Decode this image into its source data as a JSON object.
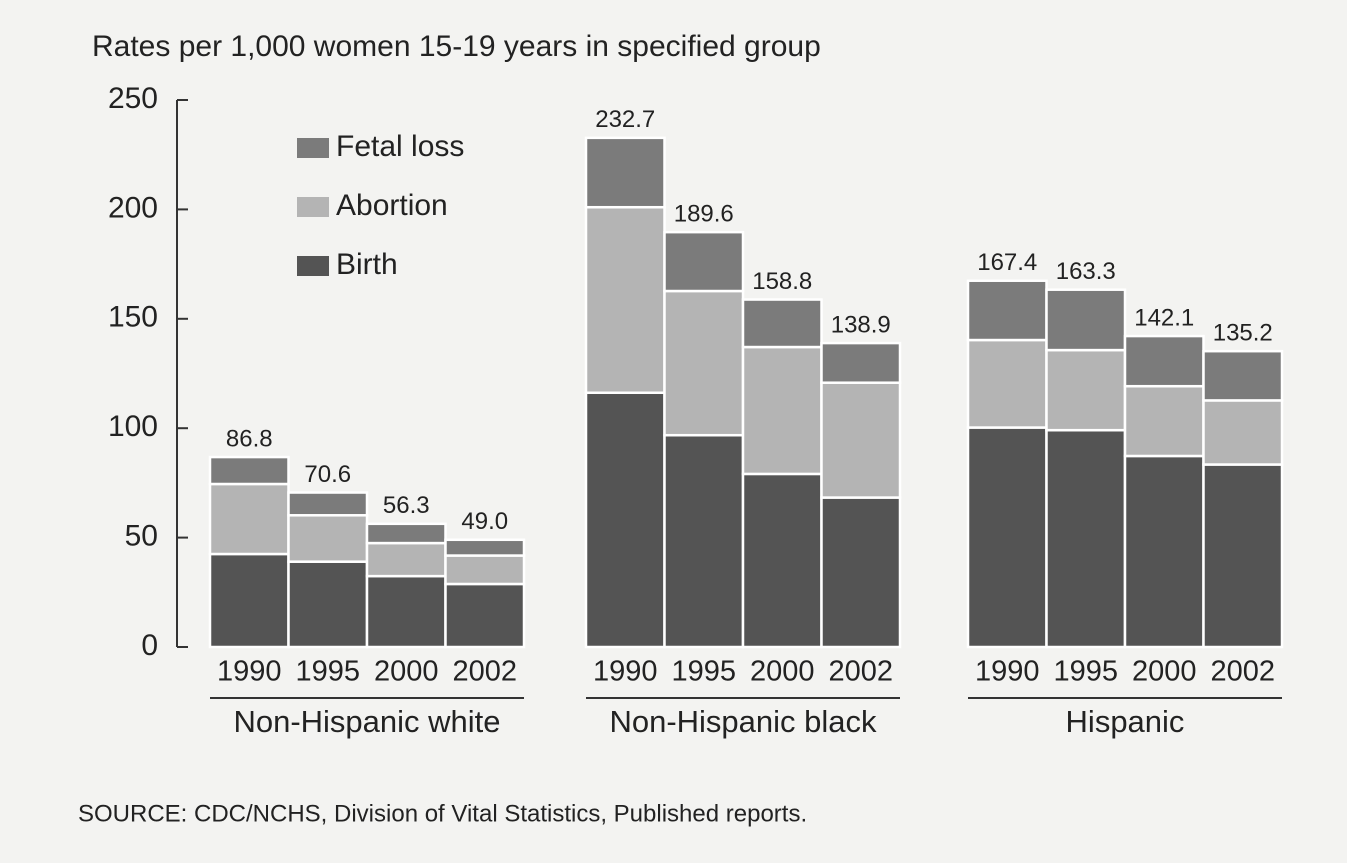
{
  "chart_data": {
    "type": "stacked_bar",
    "title": "Rates per 1,000 women 15-19 years in specified group",
    "groups": [
      {
        "label": "Non-Hispanic white",
        "categories": [
          "1990",
          "1995",
          "2000",
          "2002"
        ]
      },
      {
        "label": "Non-Hispanic black",
        "categories": [
          "1990",
          "1995",
          "2000",
          "2002"
        ]
      },
      {
        "label": "Hispanic",
        "categories": [
          "1990",
          "1995",
          "2000",
          "2002"
        ]
      }
    ],
    "series": [
      {
        "name": "Birth",
        "color": "#545454",
        "values": [
          42.5,
          39.0,
          32.4,
          28.8,
          116.2,
          96.8,
          79.1,
          68.3,
          100.3,
          99.1,
          87.3,
          83.4
        ]
      },
      {
        "name": "Abortion",
        "color": "#b4b4b4",
        "values": [
          32.0,
          21.2,
          15.1,
          13.0,
          84.8,
          65.9,
          58.0,
          52.5,
          40.0,
          36.6,
          31.9,
          29.3
        ]
      },
      {
        "name": "Fetal loss",
        "color": "#7b7b7b",
        "values": [
          12.3,
          10.4,
          8.8,
          7.2,
          31.7,
          26.9,
          21.7,
          18.1,
          27.1,
          27.6,
          22.9,
          22.5
        ]
      }
    ],
    "totals": [
      86.8,
      70.6,
      56.3,
      49.0,
      232.7,
      189.6,
      158.8,
      138.9,
      167.4,
      163.3,
      142.1,
      135.2
    ],
    "total_labels": [
      "86.8",
      "70.6",
      "56.3",
      "49.0",
      "232.7",
      "189.6",
      "158.8",
      "138.9",
      "167.4",
      "163.3",
      "142.1",
      "135.2"
    ],
    "ylim": [
      0,
      250
    ],
    "yticks": [
      0,
      50,
      100,
      150,
      200,
      250
    ],
    "source": "SOURCE:  CDC/NCHS, Division of Vital Statistics, Published reports."
  }
}
